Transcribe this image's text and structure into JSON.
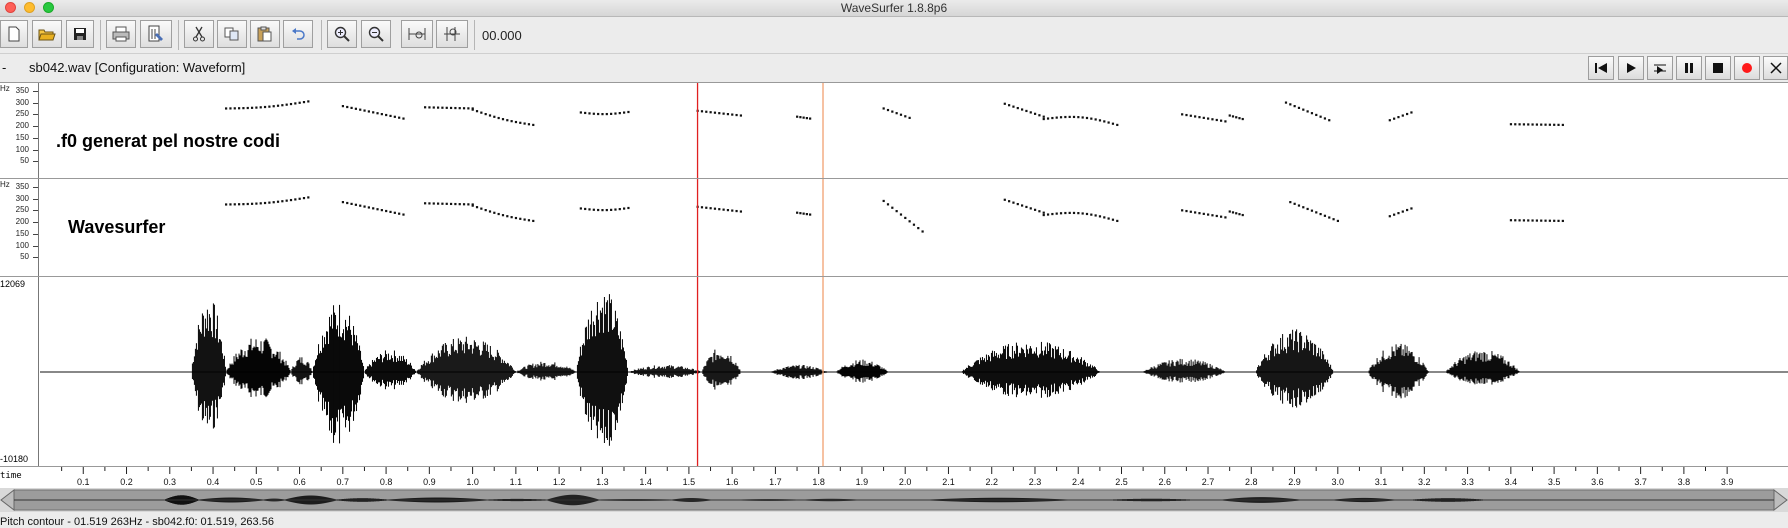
{
  "window": {
    "title": "WaveSurfer 1.8.8p6"
  },
  "toolbar": {
    "buttons": [
      "new-icon",
      "open-icon",
      "save-icon",
      "print-icon",
      "properties-icon",
      "cut-icon",
      "copy-icon",
      "paste-icon",
      "undo-icon",
      "zoom-in-icon",
      "zoom-out-icon",
      "zoom-fit-icon",
      "zoom-selection-icon"
    ],
    "time_value": "00.000"
  },
  "filebar": {
    "dash": "-",
    "file_label": "sb042.wav  [Configuration: Waveform]",
    "playback": [
      "rewind-icon",
      "play-icon",
      "loop-play-icon",
      "pause-icon",
      "stop-icon",
      "record-icon",
      "close-icon"
    ]
  },
  "pitch_ticks": [
    "350",
    "300",
    "250",
    "200",
    "150",
    "100",
    "50"
  ],
  "pitch_unit": "Hz",
  "pane1": {
    "label": ".f0 generat pel nostre codi"
  },
  "pane2": {
    "label": "Wavesurfer"
  },
  "waveform": {
    "ymax": "12069",
    "ymin": "-10180"
  },
  "timeaxis": {
    "name": "time",
    "ticks": [
      "0.1",
      "0.2",
      "0.3",
      "0.4",
      "0.5",
      "0.6",
      "0.7",
      "0.8",
      "0.9",
      "1.0",
      "1.1",
      "1.2",
      "1.3",
      "1.4",
      "1.5",
      "1.6",
      "1.7",
      "1.8",
      "1.9",
      "2.0",
      "2.1",
      "2.2",
      "2.3",
      "2.4",
      "2.5",
      "2.6",
      "2.7",
      "2.8",
      "2.9",
      "3.0",
      "3.1",
      "3.2",
      "3.3",
      "3.4",
      "3.5",
      "3.6",
      "3.7",
      "3.8",
      "3.9"
    ]
  },
  "cursors": {
    "selection_start": 1.52,
    "selection_end": 1.81
  },
  "status": {
    "text": "Pitch contour - 01.519 263Hz - sb042.f0: 01.519, 263.56"
  },
  "colors": {
    "cursor_start": "#e02020",
    "cursor_end": "#f0a070",
    "record": "#ff1a1a"
  }
}
